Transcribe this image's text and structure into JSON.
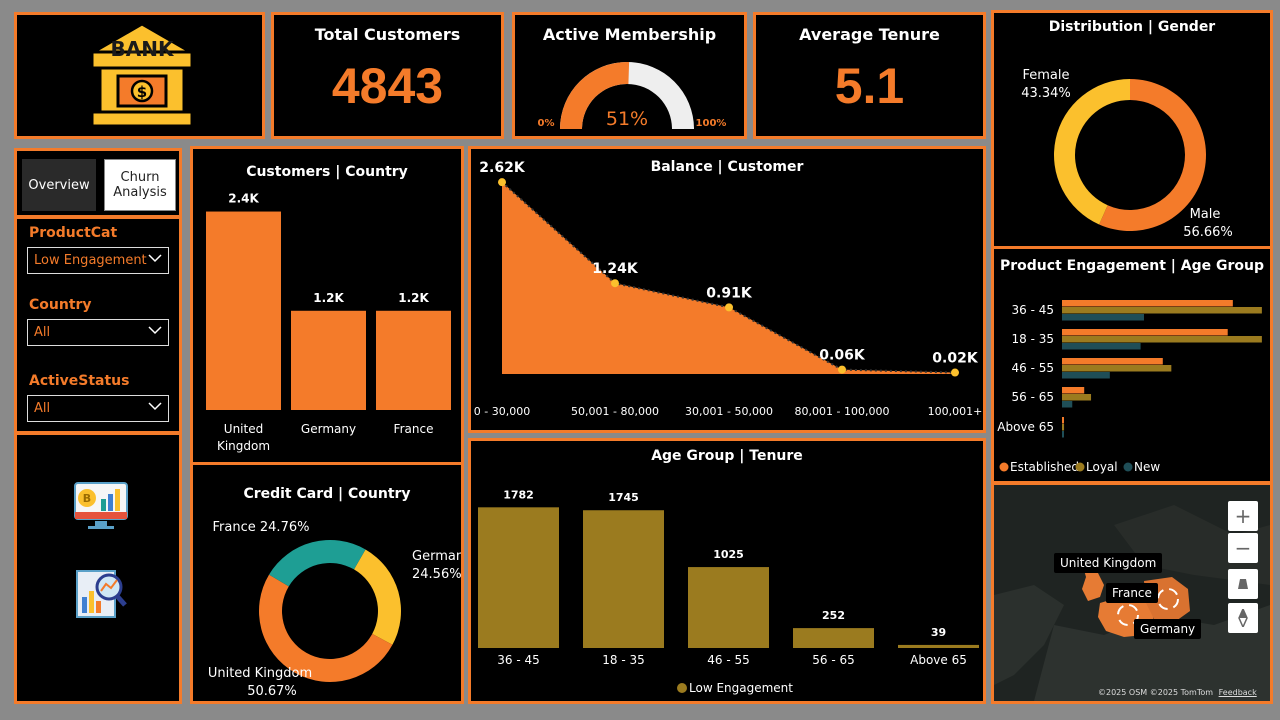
{
  "logo": {
    "text": "BANK"
  },
  "kpis": {
    "total_customers": {
      "label": "Total Customers",
      "value": "4843"
    },
    "active_membership": {
      "label": "Active Membership",
      "value": "51%",
      "fraction": 0.51,
      "min_label": "0%",
      "max_label": "100%"
    },
    "average_tenure": {
      "label": "Average Tenure",
      "value": "5.1"
    }
  },
  "nav": {
    "overview": "Overview",
    "churn_line1": "Churn",
    "churn_line2": "Analysis"
  },
  "filters": {
    "product_cat": {
      "label": "ProductCat",
      "value": "Low Engagement"
    },
    "country": {
      "label": "Country",
      "value": "All"
    },
    "active_status": {
      "label": "ActiveStatus",
      "value": "All"
    }
  },
  "map": {
    "labels": {
      "uk": "United Kingdom",
      "france": "France",
      "germany": "Germany"
    },
    "zoom_in": "+",
    "zoom_out": "−",
    "attribution": "©2025 OSM  ©2025 TomTom",
    "feedback": "Feedback"
  },
  "colors": {
    "accent": "#f47b2a",
    "yellow": "#fbc02d",
    "teal": "#1e9e94",
    "olive": "#9b7b1f",
    "dark_teal": "#1f4e57"
  },
  "chart_data": [
    {
      "id": "customers_country",
      "type": "bar",
      "title": "Customers | Country",
      "categories": [
        "United Kingdom",
        "Germany",
        "France"
      ],
      "category_lines": [
        [
          "United",
          "Kingdom"
        ],
        [
          "Germany"
        ],
        [
          "France"
        ]
      ],
      "values": [
        2400,
        1200,
        1200
      ],
      "data_labels": [
        "2.4K",
        "1.2K",
        "1.2K"
      ],
      "ylim": [
        0,
        2600
      ]
    },
    {
      "id": "balance_customer",
      "type": "area",
      "title": "Balance | Customer",
      "categories": [
        "0 - 30,000",
        "50,001 - 80,000",
        "30,001 - 50,000",
        "80,001 - 100,000",
        "100,001+"
      ],
      "values": [
        2620,
        1240,
        910,
        60,
        20
      ],
      "data_labels": [
        "2.62K",
        "1.24K",
        "0.91K",
        "0.06K",
        "0.02K"
      ],
      "ylim": [
        0,
        2800
      ]
    },
    {
      "id": "gender_distribution",
      "type": "pie",
      "title": "Distribution | Gender",
      "slices": [
        {
          "name": "Male",
          "value": 56.66,
          "label": "56.66%",
          "color": "#f47b2a"
        },
        {
          "name": "Female",
          "value": 43.34,
          "label": "43.34%",
          "color": "#fbc02d"
        }
      ]
    },
    {
      "id": "credit_card_country",
      "type": "pie",
      "title": "Credit Card | Country",
      "slices": [
        {
          "name": "United Kingdom",
          "value": 50.67,
          "label": "50.67%",
          "color": "#f47b2a"
        },
        {
          "name": "France",
          "value": 24.76,
          "label": "24.76%",
          "color": "#1e9e94"
        },
        {
          "name": "Germany",
          "value": 24.56,
          "label": "24.56%",
          "color": "#fbc02d"
        }
      ]
    },
    {
      "id": "age_group_tenure",
      "type": "bar",
      "title": "Age Group | Tenure",
      "categories": [
        "36 - 45",
        "18 - 35",
        "46 - 55",
        "56 - 65",
        "Above 65"
      ],
      "values": [
        1782,
        1745,
        1025,
        252,
        39
      ],
      "data_labels": [
        "1782",
        "1745",
        "1025",
        "252",
        "39"
      ],
      "legend": "Low Engagement",
      "ylim": [
        0,
        1900
      ]
    },
    {
      "id": "product_engagement_age",
      "type": "bar",
      "orientation": "horizontal",
      "title": "Product Engagement | Age Group",
      "categories": [
        "36 - 45",
        "18 - 35",
        "46 - 55",
        "56 - 65",
        "Above 65"
      ],
      "series": [
        {
          "name": "Established",
          "color": "#f47b2a",
          "values": [
            1000,
            970,
            590,
            130,
            10
          ]
        },
        {
          "name": "Loyal",
          "color": "#9b7b1f",
          "values": [
            1170,
            1170,
            640,
            170,
            12
          ]
        },
        {
          "name": "New",
          "color": "#1f4e57",
          "values": [
            480,
            460,
            280,
            60,
            8
          ]
        }
      ],
      "xlim": [
        0,
        1200
      ]
    }
  ]
}
